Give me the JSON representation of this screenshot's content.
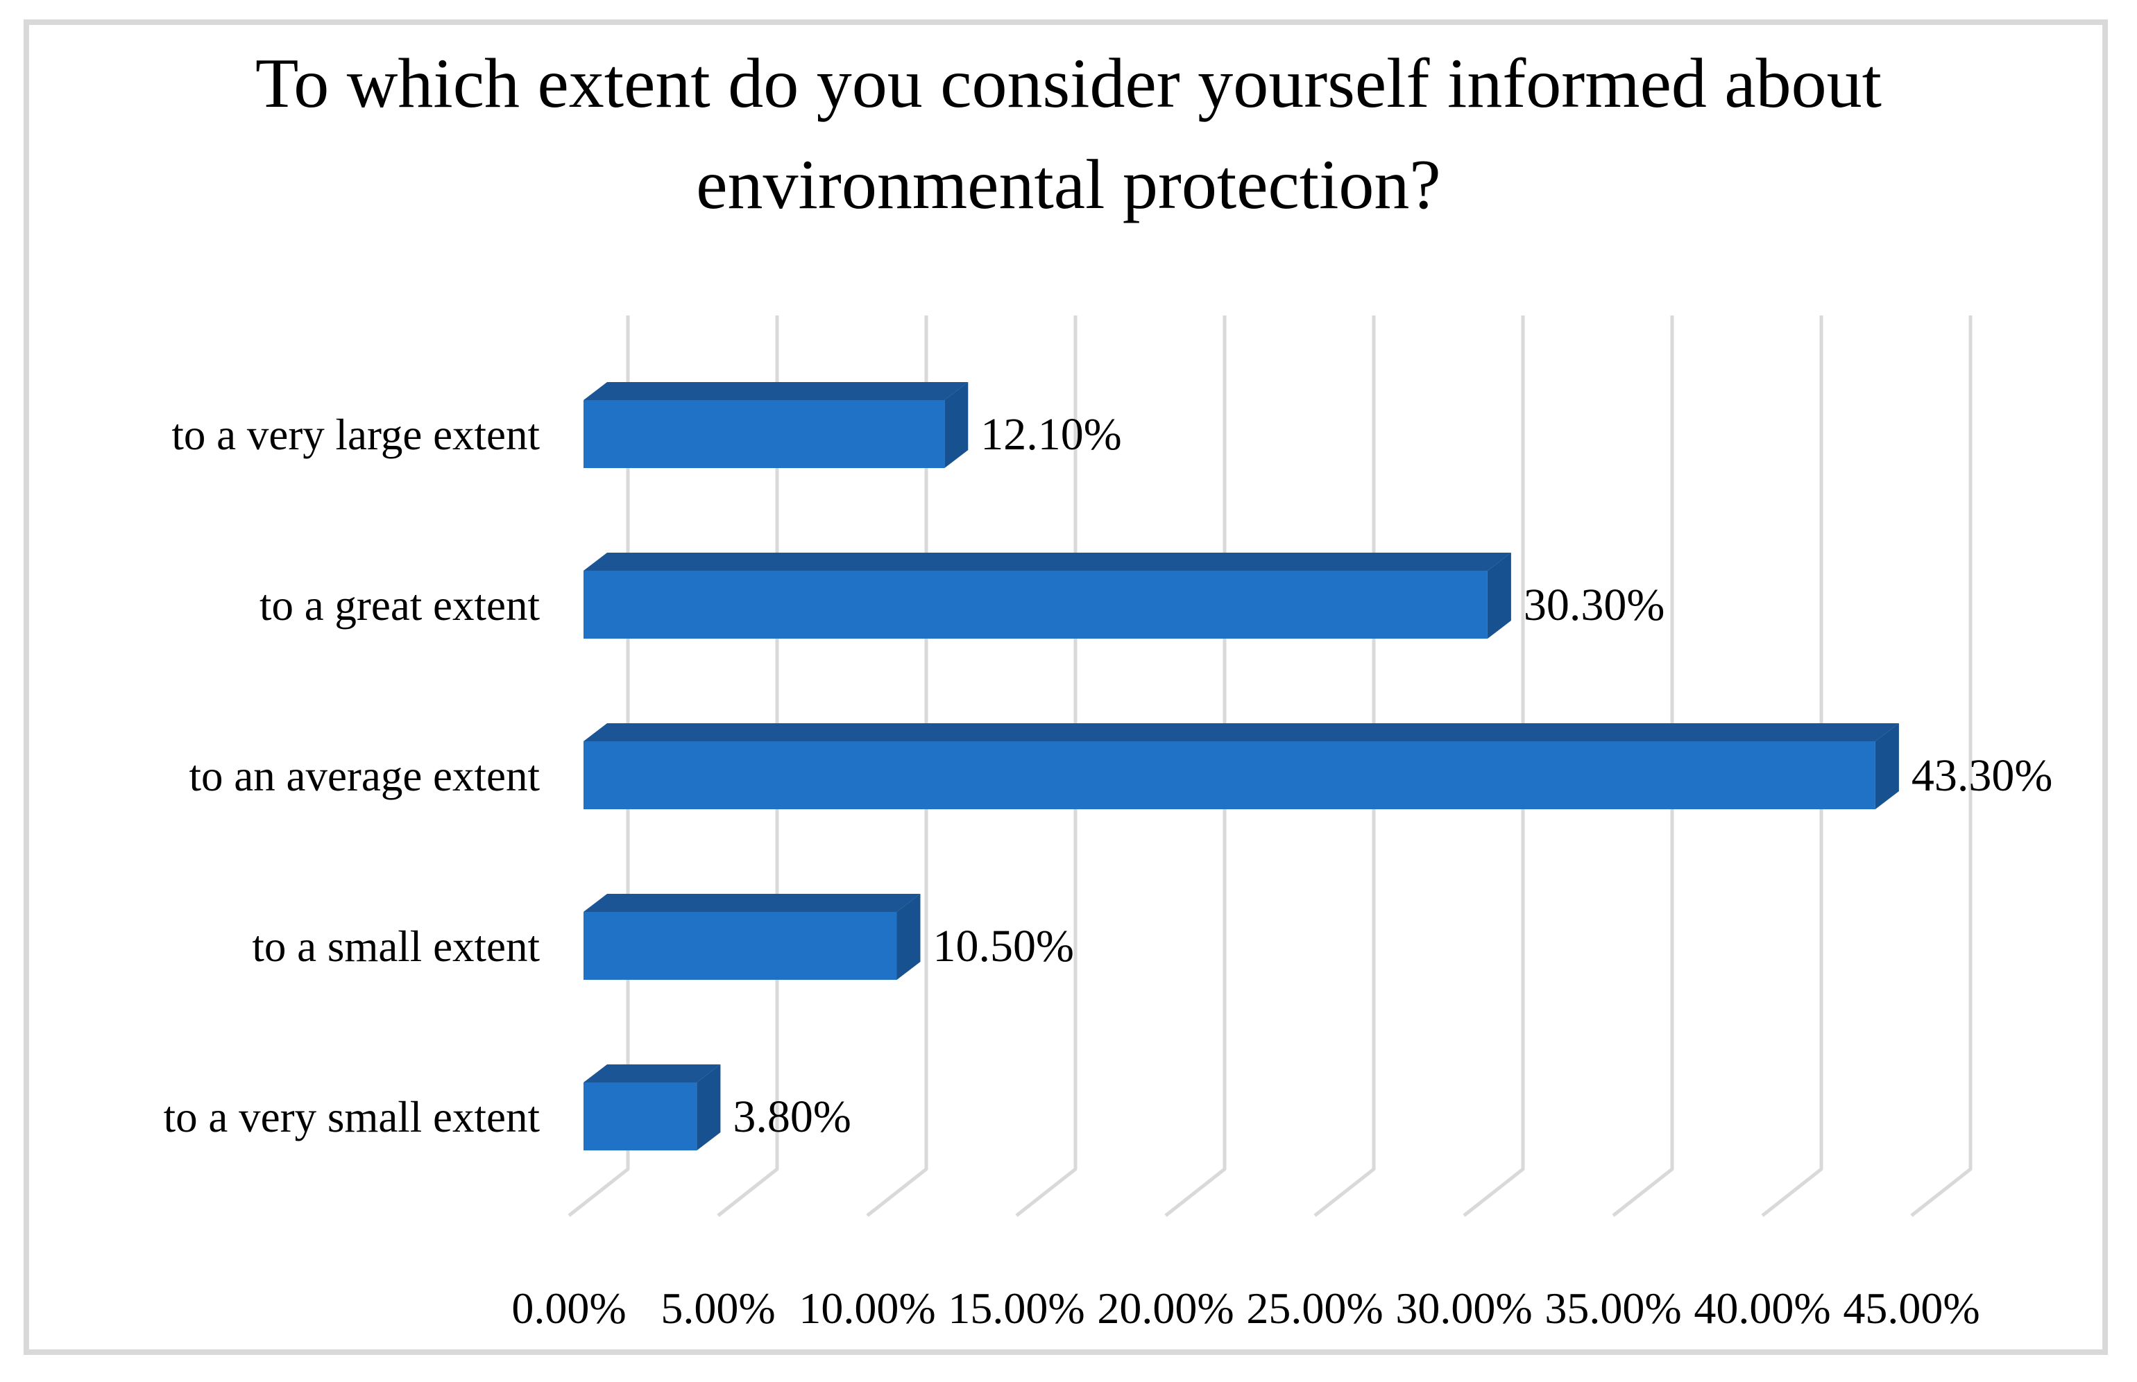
{
  "chart_data": {
    "type": "bar",
    "orientation": "horizontal",
    "style": "3d",
    "title": "To which extent do you consider yourself informed about environmental protection?",
    "title_lines": [
      "To which extent do you consider yourself informed about",
      "environmental protection?"
    ],
    "categories": [
      "to a very large extent",
      "to a great extent",
      "to an average extent",
      "to a small extent",
      "to a very small extent"
    ],
    "values": [
      12.1,
      30.3,
      43.3,
      10.5,
      3.8
    ],
    "value_labels": [
      "12.10%",
      "30.30%",
      "43.30%",
      "10.50%",
      "3.80%"
    ],
    "x_ticks": [
      "0.00%",
      "5.00%",
      "10.00%",
      "15.00%",
      "20.00%",
      "25.00%",
      "30.00%",
      "35.00%",
      "40.00%",
      "45.00%"
    ],
    "xlim": [
      0,
      45
    ],
    "xlabel": "",
    "ylabel": "",
    "grid": "vertical",
    "legend": "none",
    "colors": {
      "bar_front": "#1f72c6",
      "bar_top": "#1b5595",
      "bar_side": "#17518f",
      "gridline": "#d9d9d9",
      "frame_border": "#d9d9d9",
      "text": "#000000",
      "background": "#ffffff"
    }
  }
}
